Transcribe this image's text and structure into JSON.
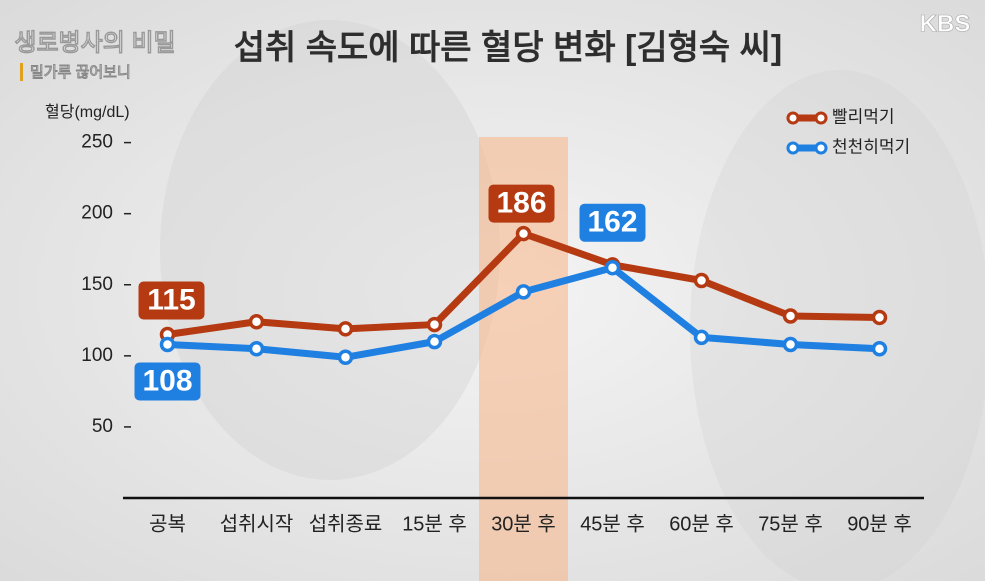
{
  "overlay": {
    "program": "생로병사의 비밀",
    "episode": "밀가루 끊어보니",
    "logo": "KBS"
  },
  "chart_data": {
    "type": "line",
    "title": "섭취 속도에 따른 혈당 변화 [김형숙 씨]",
    "ylabel": "혈당(mg/dL)",
    "categories": [
      "공복",
      "섭취시작",
      "섭취종료",
      "15분 후",
      "30분 후",
      "45분 후",
      "60분 후",
      "75분 후",
      "90분 후"
    ],
    "series": [
      {
        "name": "빨리먹기",
        "color": "#b53a12",
        "values": [
          115,
          124,
          119,
          122,
          186,
          164,
          153,
          128,
          127
        ],
        "labeled_indices": [
          0,
          4
        ]
      },
      {
        "name": "천천히먹기",
        "color": "#1f80e2",
        "values": [
          108,
          105,
          99,
          110,
          145,
          162,
          113,
          108,
          105
        ],
        "labeled_indices": [
          0,
          5
        ]
      }
    ],
    "ylim": [
      0,
      250
    ],
    "yticks": [
      50,
      100,
      150,
      200,
      250
    ],
    "highlight_index": 4,
    "legend": "upper right"
  }
}
